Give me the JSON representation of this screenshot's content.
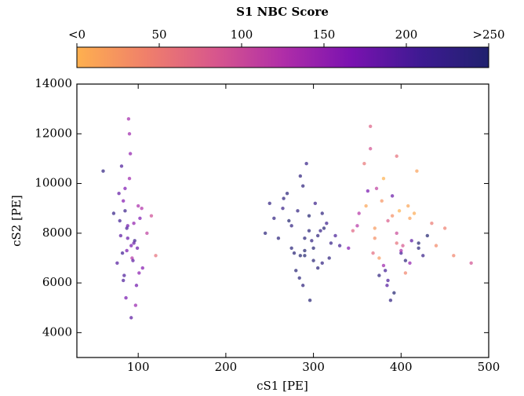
{
  "chart_data": {
    "type": "scatter",
    "xlabel": "cS1 [PE]",
    "ylabel": "cS2 [PE]",
    "xlim": [
      30,
      500
    ],
    "xticks": [
      100,
      200,
      300,
      400,
      500
    ],
    "ylim": [
      3000,
      14000
    ],
    "yticks": [
      4000,
      6000,
      8000,
      10000,
      12000,
      14000
    ],
    "x": [
      88,
      95,
      82,
      100,
      76,
      92,
      85,
      105,
      90,
      80,
      98,
      87,
      93,
      78,
      102,
      84,
      91,
      96,
      86,
      110,
      72,
      89,
      94,
      83,
      99,
      81,
      97,
      88,
      60,
      120,
      92,
      85,
      101,
      79,
      90,
      95,
      87,
      104,
      83,
      115,
      290,
      275,
      300,
      310,
      285,
      265,
      295,
      320,
      280,
      305,
      255,
      290,
      315,
      270,
      300,
      285,
      330,
      260,
      295,
      310,
      278,
      288,
      302,
      245,
      292,
      318,
      272,
      284,
      298,
      312,
      266,
      290,
      305,
      282,
      296,
      325,
      275,
      288,
      308,
      250,
      370,
      385,
      400,
      360,
      410,
      395,
      380,
      420,
      350,
      405,
      390,
      375,
      430,
      365,
      415,
      385,
      345,
      400,
      440,
      372,
      392,
      410,
      358,
      425,
      380,
      398,
      365,
      412,
      388,
      450,
      340,
      378,
      405,
      395,
      368,
      418,
      382,
      435,
      362,
      402,
      390,
      375,
      460,
      352,
      408,
      384,
      395,
      420,
      370,
      480
    ],
    "y": [
      7800,
      8400,
      7200,
      9100,
      6800,
      7500,
      8900,
      6600,
      10200,
      7900,
      5900,
      8200,
      7000,
      9600,
      8600,
      6300,
      11200,
      7700,
      5400,
      8000,
      8800,
      12600,
      6900,
      9300,
      7400,
      10700,
      5100,
      8300,
      10500,
      7100,
      4600,
      9800,
      6400,
      8500,
      12000,
      7600,
      7300,
      9000,
      6100,
      8700,
      7800,
      8300,
      7400,
      8800,
      7100,
      9000,
      8100,
      7600,
      6500,
      7900,
      8600,
      7300,
      8400,
      9600,
      6900,
      10300,
      7500,
      7800,
      8700,
      6800,
      7200,
      5900,
      9200,
      8000,
      10800,
      7000,
      8500,
      6200,
      7700,
      8200,
      9400,
      7100,
      6600,
      8900,
      5300,
      7900,
      7400,
      9900,
      8100,
      9200,
      7800,
      8500,
      7200,
      9100,
      6800,
      7600,
      10200,
      7400,
      8300,
      6400,
      9500,
      7000,
      7900,
      11400,
      8800,
      6100,
      8100,
      7300,
      7500,
      9800,
      5600,
      8600,
      10800,
      7100,
      6700,
      8900,
      12300,
      7700,
      5300,
      8200,
      7400,
      9300,
      6900,
      8000,
      7200,
      10500,
      6500,
      8400,
      9700,
      7500,
      8700,
      6300,
      7100,
      8800,
      9100,
      5900,
      11100,
      7600,
      8200,
      6800
    ],
    "c": [
      180,
      150,
      210,
      130,
      195,
      170,
      220,
      160,
      140,
      190,
      175,
      205,
      120,
      185,
      165,
      200,
      150,
      215,
      170,
      110,
      225,
      135,
      190,
      160,
      180,
      200,
      145,
      175,
      230,
      60,
      190,
      165,
      155,
      210,
      140,
      185,
      170,
      125,
      200,
      95,
      240,
      230,
      245,
      235,
      250,
      220,
      240,
      225,
      245,
      235,
      230,
      250,
      215,
      240,
      245,
      235,
      210,
      240,
      250,
      230,
      245,
      235,
      220,
      240,
      225,
      235,
      250,
      240,
      230,
      245,
      235,
      250,
      240,
      230,
      245,
      205,
      240,
      235,
      225,
      230,
      30,
      80,
      210,
      10,
      150,
      60,
      0,
      240,
      120,
      40,
      180,
      20,
      250,
      90,
      5,
      200,
      70,
      130,
      35,
      110,
      250,
      15,
      55,
      220,
      140,
      0,
      75,
      190,
      230,
      45,
      160,
      25,
      240,
      100,
      65,
      15,
      210,
      50,
      170,
      85,
      30,
      235,
      40,
      120,
      10,
      195,
      60,
      250,
      20,
      90
    ],
    "colorbar": {
      "title": "S1 NBC Score",
      "lim": [
        0,
        250
      ],
      "ticks": [
        {
          "value": 0,
          "label": "<0"
        },
        50,
        100,
        150,
        200,
        {
          "value": 250,
          "label": ">250"
        }
      ],
      "colors": [
        "#feb04f",
        "#f0806a",
        "#d8578c",
        "#b02ea8",
        "#7a12b0",
        "#3e1a92",
        "#20216e"
      ]
    }
  }
}
